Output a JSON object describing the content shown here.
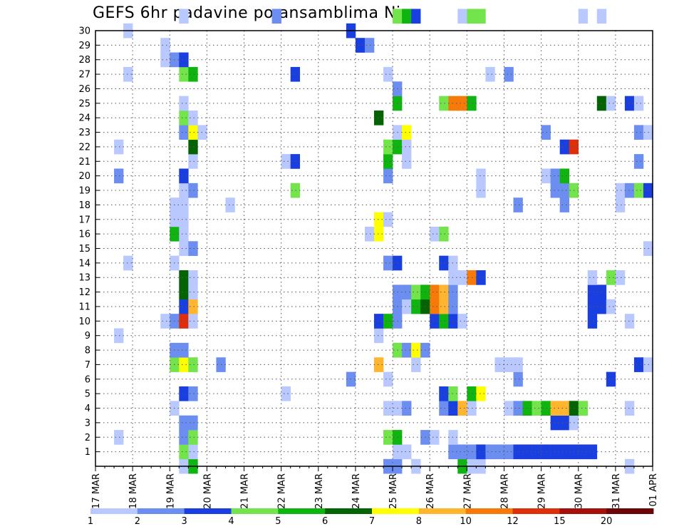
{
  "chart_data": {
    "type": "heatmap",
    "title": "GEFS 6hr padavine po ansamblima Nis",
    "x_labels": [
      "17 MAR",
      "18 MAR",
      "19 MAR",
      "20 MAR",
      "21 MAR",
      "22 MAR",
      "23 MAR",
      "24 MAR",
      "25 MAR",
      "26 MAR",
      "27 MAR",
      "28 MAR",
      "29 MAR",
      "30 MAR",
      "31 MAR",
      "01 APR"
    ],
    "y_labels": [
      "1",
      "2",
      "3",
      "4",
      "5",
      "6",
      "7",
      "8",
      "9",
      "10",
      "11",
      "12",
      "13",
      "14",
      "15",
      "16",
      "17",
      "18",
      "19",
      "20",
      "21",
      "22",
      "23",
      "24",
      "25",
      "26",
      "27",
      "28",
      "29",
      "30"
    ],
    "x_unit": "6-hour steps from 17 MAR 00Z",
    "x_range": [
      0,
      60
    ],
    "y_range": [
      0,
      30
    ],
    "grid": true,
    "colorbar": {
      "colors": [
        "#b9c9ff",
        "#6c8ef0",
        "#1a3fe0",
        "#74e44c",
        "#10b410",
        "#046404",
        "#ffff00",
        "#ffb62e",
        "#f67a0a",
        "#dc2f0a",
        "#a4100a",
        "#6a0606"
      ],
      "labels": [
        "1",
        "2",
        "3",
        "4",
        "5",
        "6",
        "7",
        "8",
        "10",
        "12",
        "15",
        "20"
      ]
    },
    "cells": [
      [
        9,
        0,
        1
      ],
      [
        10,
        0,
        5
      ],
      [
        10,
        1,
        1
      ],
      [
        31,
        0,
        2
      ],
      [
        32,
        0,
        2
      ],
      [
        34,
        0,
        1
      ],
      [
        39,
        0,
        5
      ],
      [
        40,
        0,
        1
      ],
      [
        41,
        0,
        1
      ],
      [
        57,
        0,
        1
      ],
      [
        9,
        1,
        4
      ],
      [
        32,
        1,
        1
      ],
      [
        33,
        1,
        1
      ],
      [
        38,
        1,
        2
      ],
      [
        39,
        1,
        2
      ],
      [
        40,
        1,
        2
      ],
      [
        41,
        1,
        3
      ],
      [
        42,
        1,
        2
      ],
      [
        43,
        1,
        2
      ],
      [
        44,
        1,
        2
      ],
      [
        45,
        1,
        3
      ],
      [
        46,
        1,
        3
      ],
      [
        47,
        1,
        3
      ],
      [
        48,
        1,
        3
      ],
      [
        49,
        1,
        3
      ],
      [
        50,
        1,
        3
      ],
      [
        51,
        1,
        3
      ],
      [
        52,
        1,
        3
      ],
      [
        53,
        1,
        3
      ],
      [
        2,
        2,
        1
      ],
      [
        9,
        2,
        2
      ],
      [
        10,
        2,
        4
      ],
      [
        31,
        2,
        4
      ],
      [
        32,
        2,
        5
      ],
      [
        35,
        2,
        2
      ],
      [
        36,
        2,
        1
      ],
      [
        38,
        2,
        1
      ],
      [
        9,
        3,
        2
      ],
      [
        10,
        3,
        2
      ],
      [
        49,
        3,
        3
      ],
      [
        50,
        3,
        3
      ],
      [
        51,
        3,
        1
      ],
      [
        8,
        4,
        1
      ],
      [
        31,
        4,
        1
      ],
      [
        32,
        4,
        1
      ],
      [
        33,
        4,
        2
      ],
      [
        37,
        4,
        2
      ],
      [
        38,
        4,
        3
      ],
      [
        39,
        4,
        8
      ],
      [
        40,
        4,
        1
      ],
      [
        44,
        4,
        1
      ],
      [
        45,
        4,
        2
      ],
      [
        46,
        4,
        5
      ],
      [
        47,
        4,
        4
      ],
      [
        48,
        4,
        5
      ],
      [
        49,
        4,
        8
      ],
      [
        50,
        4,
        8
      ],
      [
        51,
        4,
        6
      ],
      [
        52,
        4,
        4
      ],
      [
        57,
        4,
        1
      ],
      [
        9,
        5,
        3
      ],
      [
        10,
        5,
        2
      ],
      [
        20,
        5,
        1
      ],
      [
        37,
        5,
        3
      ],
      [
        38,
        5,
        4
      ],
      [
        40,
        5,
        5
      ],
      [
        41,
        5,
        7
      ],
      [
        27,
        6,
        2
      ],
      [
        31,
        6,
        1
      ],
      [
        45,
        6,
        2
      ],
      [
        55,
        6,
        3
      ],
      [
        8,
        7,
        4
      ],
      [
        9,
        7,
        7
      ],
      [
        10,
        7,
        4
      ],
      [
        13,
        7,
        2
      ],
      [
        30,
        7,
        8
      ],
      [
        34,
        7,
        1
      ],
      [
        43,
        7,
        1
      ],
      [
        44,
        7,
        1
      ],
      [
        45,
        7,
        1
      ],
      [
        58,
        7,
        3
      ],
      [
        59,
        7,
        1
      ],
      [
        8,
        8,
        2
      ],
      [
        9,
        8,
        2
      ],
      [
        32,
        8,
        4
      ],
      [
        33,
        8,
        2
      ],
      [
        34,
        8,
        7
      ],
      [
        35,
        8,
        2
      ],
      [
        2,
        9,
        1
      ],
      [
        30,
        9,
        1
      ],
      [
        7,
        10,
        1
      ],
      [
        8,
        10,
        2
      ],
      [
        9,
        10,
        10
      ],
      [
        10,
        10,
        1
      ],
      [
        30,
        10,
        3
      ],
      [
        31,
        10,
        5
      ],
      [
        32,
        10,
        2
      ],
      [
        36,
        10,
        3
      ],
      [
        37,
        10,
        5
      ],
      [
        38,
        10,
        3
      ],
      [
        39,
        10,
        1
      ],
      [
        53,
        10,
        3
      ],
      [
        57,
        10,
        1
      ],
      [
        9,
        11,
        3
      ],
      [
        10,
        11,
        8
      ],
      [
        32,
        11,
        2
      ],
      [
        33,
        11,
        1
      ],
      [
        34,
        11,
        5
      ],
      [
        35,
        11,
        6
      ],
      [
        36,
        11,
        9
      ],
      [
        37,
        11,
        8
      ],
      [
        38,
        11,
        2
      ],
      [
        53,
        11,
        3
      ],
      [
        54,
        11,
        3
      ],
      [
        55,
        11,
        1
      ],
      [
        9,
        12,
        6
      ],
      [
        10,
        12,
        1
      ],
      [
        32,
        12,
        2
      ],
      [
        33,
        12,
        2
      ],
      [
        34,
        12,
        4
      ],
      [
        35,
        12,
        5
      ],
      [
        36,
        12,
        9
      ],
      [
        37,
        12,
        8
      ],
      [
        38,
        12,
        2
      ],
      [
        53,
        12,
        3
      ],
      [
        54,
        12,
        3
      ],
      [
        9,
        13,
        6
      ],
      [
        10,
        13,
        1
      ],
      [
        38,
        13,
        1
      ],
      [
        39,
        13,
        1
      ],
      [
        40,
        13,
        9
      ],
      [
        41,
        13,
        3
      ],
      [
        53,
        13,
        1
      ],
      [
        55,
        13,
        4
      ],
      [
        56,
        13,
        1
      ],
      [
        3,
        14,
        1
      ],
      [
        8,
        14,
        1
      ],
      [
        31,
        14,
        2
      ],
      [
        32,
        14,
        3
      ],
      [
        37,
        14,
        3
      ],
      [
        38,
        14,
        1
      ],
      [
        9,
        15,
        1
      ],
      [
        10,
        15,
        2
      ],
      [
        59,
        15,
        1
      ],
      [
        8,
        16,
        5
      ],
      [
        9,
        16,
        1
      ],
      [
        29,
        16,
        1
      ],
      [
        30,
        16,
        7
      ],
      [
        36,
        16,
        1
      ],
      [
        37,
        16,
        4
      ],
      [
        8,
        17,
        1
      ],
      [
        9,
        17,
        1
      ],
      [
        30,
        17,
        7
      ],
      [
        31,
        17,
        1
      ],
      [
        8,
        18,
        1
      ],
      [
        9,
        18,
        1
      ],
      [
        14,
        18,
        1
      ],
      [
        45,
        18,
        2
      ],
      [
        50,
        18,
        2
      ],
      [
        56,
        18,
        1
      ],
      [
        9,
        19,
        1
      ],
      [
        10,
        19,
        2
      ],
      [
        21,
        19,
        4
      ],
      [
        41,
        19,
        1
      ],
      [
        49,
        19,
        2
      ],
      [
        50,
        19,
        2
      ],
      [
        51,
        19,
        4
      ],
      [
        56,
        19,
        1
      ],
      [
        57,
        19,
        2
      ],
      [
        58,
        19,
        4
      ],
      [
        59,
        19,
        3
      ],
      [
        2,
        20,
        2
      ],
      [
        9,
        20,
        3
      ],
      [
        31,
        20,
        2
      ],
      [
        41,
        20,
        1
      ],
      [
        48,
        20,
        1
      ],
      [
        49,
        20,
        2
      ],
      [
        50,
        20,
        5
      ],
      [
        10,
        21,
        1
      ],
      [
        20,
        21,
        1
      ],
      [
        21,
        21,
        3
      ],
      [
        31,
        21,
        5
      ],
      [
        33,
        21,
        1
      ],
      [
        58,
        21,
        2
      ],
      [
        2,
        22,
        1
      ],
      [
        10,
        22,
        6
      ],
      [
        31,
        22,
        4
      ],
      [
        32,
        22,
        5
      ],
      [
        33,
        22,
        1
      ],
      [
        50,
        22,
        3
      ],
      [
        51,
        22,
        10
      ],
      [
        9,
        23,
        2
      ],
      [
        10,
        23,
        7
      ],
      [
        11,
        23,
        1
      ],
      [
        32,
        23,
        1
      ],
      [
        33,
        23,
        7
      ],
      [
        48,
        23,
        2
      ],
      [
        58,
        23,
        2
      ],
      [
        59,
        23,
        1
      ],
      [
        9,
        24,
        4
      ],
      [
        10,
        24,
        1
      ],
      [
        30,
        24,
        6
      ],
      [
        9,
        25,
        1
      ],
      [
        32,
        25,
        5
      ],
      [
        37,
        25,
        4
      ],
      [
        38,
        25,
        9
      ],
      [
        39,
        25,
        9
      ],
      [
        40,
        25,
        5
      ],
      [
        54,
        25,
        6
      ],
      [
        55,
        25,
        1
      ],
      [
        57,
        25,
        3
      ],
      [
        58,
        25,
        1
      ],
      [
        32,
        26,
        2
      ],
      [
        3,
        27,
        1
      ],
      [
        9,
        27,
        4
      ],
      [
        10,
        27,
        5
      ],
      [
        21,
        27,
        3
      ],
      [
        31,
        27,
        1
      ],
      [
        42,
        27,
        1
      ],
      [
        44,
        27,
        2
      ],
      [
        7,
        28,
        1
      ],
      [
        8,
        28,
        2
      ],
      [
        9,
        28,
        3
      ],
      [
        7,
        29,
        1
      ],
      [
        28,
        29,
        3
      ],
      [
        29,
        29,
        2
      ],
      [
        3,
        30,
        1
      ],
      [
        27,
        30,
        3
      ],
      [
        9,
        31,
        1
      ],
      [
        19,
        31,
        2
      ],
      [
        32,
        31,
        4
      ],
      [
        33,
        31,
        5
      ],
      [
        34,
        31,
        3
      ],
      [
        39,
        31,
        1
      ],
      [
        40,
        31,
        4
      ],
      [
        41,
        31,
        4
      ],
      [
        52,
        31,
        1
      ],
      [
        54,
        31,
        1
      ]
    ]
  }
}
